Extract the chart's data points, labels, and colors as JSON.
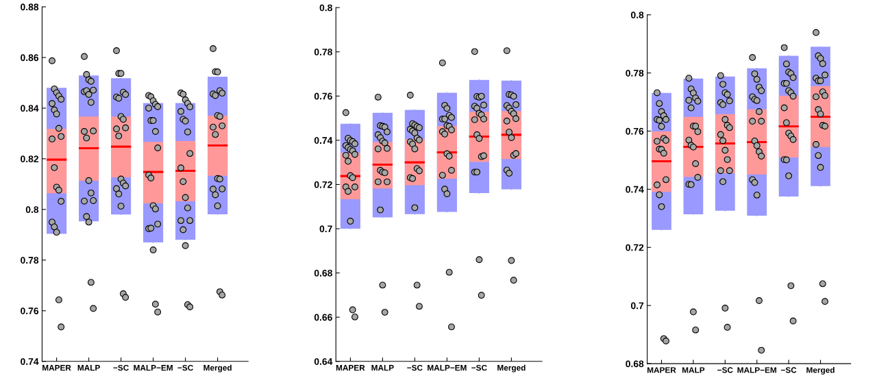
{
  "chart_data": [
    {
      "type": "box",
      "categories": [
        "MAPER",
        "MALP",
        "−SC",
        "MALP−EM",
        "−SC",
        "Merged"
      ],
      "ylim": [
        0.74,
        0.88
      ],
      "yticks": [
        0.74,
        0.76,
        0.78,
        0.8,
        0.82,
        0.84,
        0.86,
        0.88
      ],
      "grid": false,
      "series": [
        {
          "color": "#9999ff",
          "boxes": [
            {
              "low": 0.7904,
              "q1": 0.7904,
              "median": 0.8197,
              "q3": 0.848,
              "high": 0.848
            },
            {
              "low": 0.7953,
              "q1": 0.7953,
              "median": 0.8242,
              "q3": 0.8529,
              "high": 0.8529
            },
            {
              "low": 0.798,
              "q1": 0.798,
              "median": 0.8248,
              "q3": 0.8518,
              "high": 0.8518
            },
            {
              "low": 0.787,
              "q1": 0.787,
              "median": 0.8148,
              "q3": 0.842,
              "high": 0.842
            },
            {
              "low": 0.788,
              "q1": 0.788,
              "median": 0.8152,
              "q3": 0.842,
              "high": 0.842
            },
            {
              "low": 0.7981,
              "q1": 0.7981,
              "median": 0.8253,
              "q3": 0.8524,
              "high": 0.8524
            }
          ]
        },
        {
          "color": "#ff9999",
          "marker": "circle",
          "boxes": [
            {
              "low": 0.7904,
              "q1": 0.8064,
              "median": 0.8197,
              "q3": 0.8318,
              "high": 0.848,
              "outliers": [
                0.8587,
                0.8476,
                0.8461,
                0.8448,
                0.8435,
                0.8418,
                0.8393,
                0.8377,
                0.832,
                0.8288,
                0.8278,
                0.8165,
                0.8088,
                0.8076,
                0.8032,
                0.795,
                0.7931,
                0.791,
                0.7643,
                0.7536
              ]
            },
            {
              "low": 0.7953,
              "q1": 0.8113,
              "median": 0.8242,
              "q3": 0.8367,
              "high": 0.8529,
              "outliers": [
                0.8604,
                0.8533,
                0.8512,
                0.8506,
                0.8471,
                0.8465,
                0.8469,
                0.8454,
                0.8423,
                0.831,
                0.8308,
                0.8282,
                0.8114,
                0.8065,
                0.8035,
                0.8033,
                0.7972,
                0.795,
                0.7712,
                0.7609
              ]
            },
            {
              "low": 0.798,
              "q1": 0.8127,
              "median": 0.8248,
              "q3": 0.8367,
              "high": 0.8518,
              "outliers": [
                0.8627,
                0.8537,
                0.8537,
                0.8463,
                0.8454,
                0.8444,
                0.8439,
                0.8367,
                0.8356,
                0.8322,
                0.8318,
                0.829,
                0.812,
                0.8104,
                0.8093,
                0.8082,
                0.8061,
                0.8013,
                0.7667,
                0.7653
              ]
            },
            {
              "low": 0.787,
              "q1": 0.8024,
              "median": 0.8148,
              "q3": 0.8267,
              "high": 0.842,
              "outliers": [
                0.845,
                0.8445,
                0.8429,
                0.8415,
                0.8406,
                0.84,
                0.8351,
                0.8351,
                0.8308,
                0.8243,
                0.8136,
                0.8124,
                0.8015,
                0.8002,
                0.7942,
                0.7924,
                0.7926,
                0.784,
                0.7626,
                0.7595
              ]
            },
            {
              "low": 0.788,
              "q1": 0.8032,
              "median": 0.8152,
              "q3": 0.827,
              "high": 0.842,
              "outliers": [
                0.846,
                0.8455,
                0.8433,
                0.8419,
                0.8405,
                0.8387,
                0.8356,
                0.8349,
                0.8306,
                0.8221,
                0.8164,
                0.811,
                0.8047,
                0.8006,
                0.7956,
                0.7956,
                0.792,
                0.7857,
                0.7624,
                0.7615
              ]
            },
            {
              "low": 0.7981,
              "q1": 0.8133,
              "median": 0.8253,
              "q3": 0.837,
              "high": 0.8524,
              "outliers": [
                0.8635,
                0.8544,
                0.8543,
                0.8469,
                0.8459,
                0.8456,
                0.845,
                0.8371,
                0.8367,
                0.833,
                0.8325,
                0.8296,
                0.8122,
                0.812,
                0.8081,
                0.808,
                0.8058,
                0.8014,
                0.7675,
                0.7662
              ]
            }
          ]
        }
      ]
    },
    {
      "type": "box",
      "categories": [
        "MAPER",
        "MALP",
        "−SC",
        "MALP−EM",
        "−SC",
        "Merged"
      ],
      "ylim": [
        0.64,
        0.8
      ],
      "yticks": [
        0.64,
        0.66,
        0.68,
        0.7,
        0.72,
        0.74,
        0.76,
        0.78,
        0.8
      ],
      "grid": false,
      "series": [
        {
          "color": "#9999ff",
          "boxes": [
            {
              "low": 0.7,
              "q1": 0.7,
              "median": 0.7238,
              "q3": 0.7475,
              "high": 0.7475
            },
            {
              "low": 0.7051,
              "q1": 0.7051,
              "median": 0.729,
              "q3": 0.7524,
              "high": 0.7524
            },
            {
              "low": 0.7066,
              "q1": 0.7066,
              "median": 0.73,
              "q3": 0.7537,
              "high": 0.7537
            },
            {
              "low": 0.7076,
              "q1": 0.7076,
              "median": 0.7345,
              "q3": 0.7615,
              "high": 0.7615
            },
            {
              "low": 0.7161,
              "q1": 0.7161,
              "median": 0.7417,
              "q3": 0.7673,
              "high": 0.7673
            },
            {
              "low": 0.7178,
              "q1": 0.7178,
              "median": 0.7425,
              "q3": 0.767,
              "high": 0.767
            }
          ]
        },
        {
          "color": "#ff9999",
          "marker": "circle",
          "boxes": [
            {
              "low": 0.7,
              "q1": 0.7133,
              "median": 0.7238,
              "q3": 0.7343,
              "high": 0.7475,
              "outliers": [
                0.7525,
                0.7409,
                0.7399,
                0.7394,
                0.7384,
                0.7376,
                0.7367,
                0.7358,
                0.7352,
                0.7336,
                0.7332,
                0.7305,
                0.724,
                0.7231,
                0.7189,
                0.7189,
                0.7169,
                0.7034,
                0.6633,
                0.6601
              ]
            },
            {
              "low": 0.7051,
              "q1": 0.7182,
              "median": 0.729,
              "q3": 0.7392,
              "high": 0.7524,
              "outliers": [
                0.7595,
                0.7466,
                0.7463,
                0.746,
                0.7438,
                0.7425,
                0.7412,
                0.7396,
                0.7388,
                0.7363,
                0.7361,
                0.7264,
                0.7256,
                0.7253,
                0.7212,
                0.7212,
                0.7085,
                0.6745,
                0.6622
              ]
            },
            {
              "low": 0.7066,
              "q1": 0.7197,
              "median": 0.73,
              "q3": 0.7405,
              "high": 0.7537,
              "outliers": [
                0.7604,
                0.7475,
                0.7469,
                0.7462,
                0.7457,
                0.745,
                0.7442,
                0.7433,
                0.741,
                0.7401,
                0.7393,
                0.7383,
                0.7361,
                0.7272,
                0.7262,
                0.7231,
                0.7227,
                0.7095,
                0.6745,
                0.6649
              ]
            },
            {
              "low": 0.7076,
              "q1": 0.7226,
              "median": 0.7345,
              "q3": 0.7464,
              "high": 0.7615,
              "outliers": [
                0.775,
                0.7558,
                0.7544,
                0.7512,
                0.7503,
                0.7496,
                0.7496,
                0.7466,
                0.7463,
                0.7447,
                0.7439,
                0.7428,
                0.7339,
                0.7328,
                0.7264,
                0.7242,
                0.7179,
                0.7158,
                0.6803,
                0.6556
              ]
            },
            {
              "low": 0.7161,
              "q1": 0.7302,
              "median": 0.7417,
              "q3": 0.7529,
              "high": 0.7673,
              "outliers": [
                0.7801,
                0.7598,
                0.7595,
                0.7599,
                0.7559,
                0.7554,
                0.7545,
                0.7522,
                0.7515,
                0.7496,
                0.7493,
                0.7425,
                0.7408,
                0.7326,
                0.733,
                0.7256,
                0.7256,
                0.686,
                0.6699
              ]
            },
            {
              "low": 0.7178,
              "q1": 0.7315,
              "median": 0.7425,
              "q3": 0.7532,
              "high": 0.767,
              "outliers": [
                0.7805,
                0.7607,
                0.7605,
                0.7599,
                0.7561,
                0.7557,
                0.7546,
                0.7531,
                0.752,
                0.7498,
                0.7487,
                0.7437,
                0.7412,
                0.7332,
                0.734,
                0.7265,
                0.7251,
                0.6856,
                0.6767
              ]
            }
          ]
        }
      ]
    },
    {
      "type": "box",
      "categories": [
        "MAPER",
        "MALP",
        "−SC",
        "MALP−EM",
        "−SC",
        "Merged"
      ],
      "ylim": [
        0.68,
        0.8
      ],
      "yticks": [
        0.68,
        0.7,
        0.72,
        0.74,
        0.76,
        0.78,
        0.8
      ],
      "grid": false,
      "series": [
        {
          "color": "#9999ff",
          "boxes": [
            {
              "low": 0.726,
              "q1": 0.726,
              "median": 0.7496,
              "q3": 0.7731,
              "high": 0.7731
            },
            {
              "low": 0.7314,
              "q1": 0.7314,
              "median": 0.7546,
              "q3": 0.7781,
              "high": 0.7781
            },
            {
              "low": 0.7326,
              "q1": 0.7326,
              "median": 0.7557,
              "q3": 0.7788,
              "high": 0.7788
            },
            {
              "low": 0.7309,
              "q1": 0.7309,
              "median": 0.7562,
              "q3": 0.7816,
              "high": 0.7816
            },
            {
              "low": 0.7375,
              "q1": 0.7375,
              "median": 0.7616,
              "q3": 0.7859,
              "high": 0.7859
            },
            {
              "low": 0.7411,
              "q1": 0.7411,
              "median": 0.7649,
              "q3": 0.789,
              "high": 0.789
            }
          ]
        },
        {
          "color": "#ff9999",
          "marker": "circle",
          "boxes": [
            {
              "low": 0.726,
              "q1": 0.7391,
              "median": 0.7496,
              "q3": 0.7599,
              "high": 0.7731,
              "outliers": [
                0.7732,
                0.7695,
                0.7667,
                0.7653,
                0.764,
                0.764,
                0.7637,
                0.7616,
                0.7575,
                0.7568,
                0.7565,
                0.7538,
                0.7537,
                0.7524,
                0.7433,
                0.7415,
                0.7381,
                0.734,
                0.6886,
                0.6878
              ]
            },
            {
              "low": 0.7314,
              "q1": 0.7443,
              "median": 0.7546,
              "q3": 0.7649,
              "high": 0.7781,
              "outliers": [
                0.7782,
                0.7745,
                0.7731,
                0.7714,
                0.7703,
                0.7706,
                0.768,
                0.7617,
                0.7617,
                0.7598,
                0.7569,
                0.7551,
                0.7545,
                0.7488,
                0.7441,
                0.7417,
                0.7416,
                0.6978,
                0.6916
              ]
            },
            {
              "low": 0.7326,
              "q1": 0.7455,
              "median": 0.7557,
              "q3": 0.7658,
              "high": 0.7788,
              "outliers": [
                0.7791,
                0.7761,
                0.7732,
                0.7726,
                0.7704,
                0.7698,
                0.7691,
                0.764,
                0.762,
                0.7612,
                0.7588,
                0.7567,
                0.7534,
                0.7502,
                0.7464,
                0.7464,
                0.7426,
                0.6991,
                0.6925
              ]
            },
            {
              "low": 0.7309,
              "q1": 0.7451,
              "median": 0.7562,
              "q3": 0.7675,
              "high": 0.7816,
              "outliers": [
                0.7853,
                0.7797,
                0.7778,
                0.7751,
                0.7739,
                0.7718,
                0.7709,
                0.7705,
                0.7667,
                0.7634,
                0.7634,
                0.7566,
                0.755,
                0.7529,
                0.7514,
                0.7433,
                0.7423,
                0.738,
                0.7017,
                0.6846
              ]
            },
            {
              "low": 0.7375,
              "q1": 0.7509,
              "median": 0.7616,
              "q3": 0.7722,
              "high": 0.7859,
              "outliers": [
                0.7887,
                0.7831,
                0.7803,
                0.7798,
                0.7784,
                0.7764,
                0.7764,
                0.7739,
                0.7732,
                0.772,
                0.768,
                0.7629,
                0.7593,
                0.7583,
                0.7571,
                0.7502,
                0.7501,
                0.7446,
                0.7068,
                0.6947
              ]
            },
            {
              "low": 0.7411,
              "q1": 0.7545,
              "median": 0.7649,
              "q3": 0.7755,
              "high": 0.789,
              "outliers": [
                0.7939,
                0.7859,
                0.785,
                0.7832,
                0.7793,
                0.7782,
                0.7773,
                0.7773,
                0.7735,
                0.7722,
                0.7718,
                0.7674,
                0.7659,
                0.762,
                0.7617,
                0.7554,
                0.7516,
                0.7475,
                0.7075,
                0.7014
              ]
            }
          ]
        }
      ]
    }
  ]
}
